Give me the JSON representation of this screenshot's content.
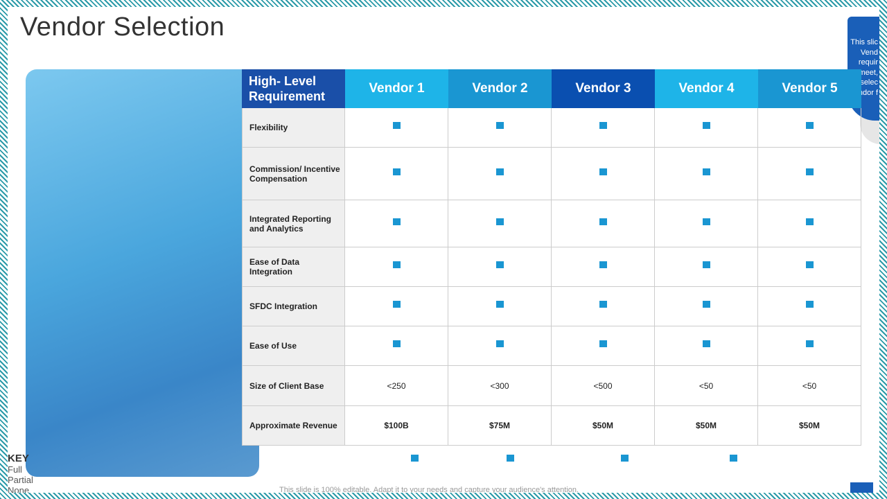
{
  "title": "Vendor Selection",
  "table": {
    "header": [
      "High- Level Requirement",
      "Vendor 1",
      "Vendor 2",
      "Vendor 3",
      "Vendor 4",
      "Vendor 5"
    ],
    "rows": [
      {
        "label": "Flexibility"
      },
      {
        "label": "Commission/ Incentive Compensation"
      },
      {
        "label": "Integrated Reporting and Analytics"
      },
      {
        "label": "Ease of Data Integration"
      },
      {
        "label": "SFDC  Integration"
      },
      {
        "label": "Ease of Use"
      },
      {
        "label": "Size of Client Base",
        "cells": [
          "<250",
          "<300",
          "<500",
          "<50",
          "<50"
        ]
      },
      {
        "label": "Approximate Revenue",
        "cells": [
          "$100B",
          "$75M",
          "$50M",
          "$50M",
          "$50M"
        ]
      }
    ]
  },
  "key": {
    "title": "KEY",
    "items": [
      "Full",
      "Partial",
      "None"
    ]
  },
  "callout": [
    "This slic",
    "Vend",
    "requir",
    "meet,",
    "selec",
    "endor f"
  ],
  "footer": "This slide is 100% editable. Adapt it to your needs and capture your audience's attention."
}
